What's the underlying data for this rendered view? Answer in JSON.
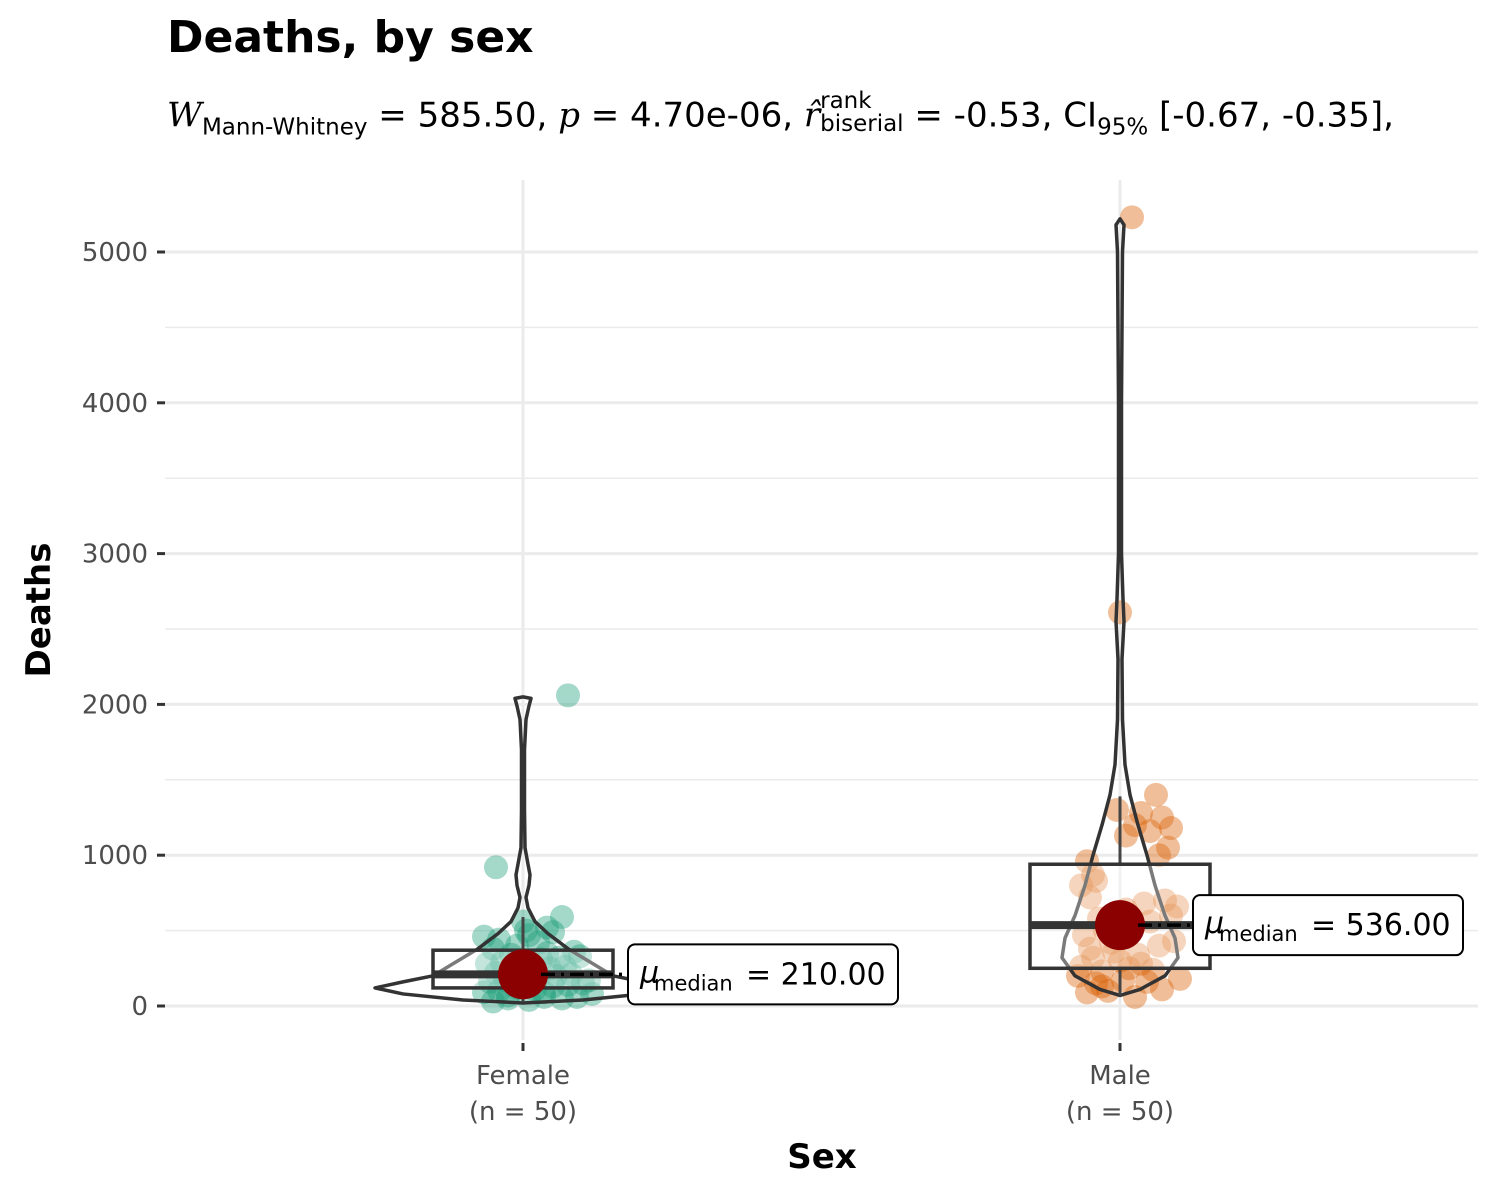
{
  "title": "Deaths, by sex",
  "subtitle": {
    "w_symbol": "W",
    "w_subscript": "Mann-Whitney",
    "w_value": "= 585.50,",
    "p_symbol": "p",
    "p_value": "= 4.70e-06,",
    "r_symbol": "r̂",
    "r_superscript": "rank",
    "r_subscript": "biserial",
    "r_value": "= -0.53,",
    "ci_symbol": "CI",
    "ci_subscript": "95%",
    "ci_value": "[-0.67, -0.35],"
  },
  "colors": {
    "female": "#1B9E77",
    "male": "#D95F02",
    "centrality": "#8B0000",
    "grid": "#ebebeb",
    "violin": "#333333"
  },
  "chart_data": {
    "type": "violin-box-scatter",
    "xlabel": "Sex",
    "ylabel": "Deaths",
    "ylim": [
      -220,
      5500
    ],
    "yticks": [
      0,
      1000,
      2000,
      3000,
      4000,
      5000
    ],
    "ytick_labels": [
      "0",
      "1000",
      "2000",
      "3000",
      "4000",
      "5000"
    ],
    "grid": true,
    "categories": [
      "Female",
      "Male"
    ],
    "category_labels": [
      {
        "name": "Female",
        "n": "(n = 50)"
      },
      {
        "name": "Male",
        "n": "(n = 50)"
      }
    ],
    "groups": [
      {
        "name": "Female",
        "median": 210,
        "median_label": "= 210.00",
        "median_symbol": "μ",
        "median_subscript": "median",
        "box": {
          "q1": 120,
          "median": 210,
          "q3": 370,
          "whisker_low": 30,
          "whisker_high": 590
        },
        "violin_max": 2050,
        "points": [
          {
            "x": -0.1,
            "y": 30
          },
          {
            "x": -0.05,
            "y": 50
          },
          {
            "x": 0.02,
            "y": 40
          },
          {
            "x": 0.07,
            "y": 60
          },
          {
            "x": 0.13,
            "y": 50
          },
          {
            "x": 0.18,
            "y": 60
          },
          {
            "x": 0.23,
            "y": 80
          },
          {
            "x": -0.13,
            "y": 90
          },
          {
            "x": -0.08,
            "y": 100
          },
          {
            "x": -0.02,
            "y": 120
          },
          {
            "x": 0.04,
            "y": 110
          },
          {
            "x": 0.1,
            "y": 130
          },
          {
            "x": 0.15,
            "y": 140
          },
          {
            "x": 0.2,
            "y": 150
          },
          {
            "x": -0.11,
            "y": 160
          },
          {
            "x": -0.06,
            "y": 170
          },
          {
            "x": -0.01,
            "y": 180
          },
          {
            "x": 0.05,
            "y": 190
          },
          {
            "x": 0.11,
            "y": 200
          },
          {
            "x": 0.16,
            "y": 210
          },
          {
            "x": -0.09,
            "y": 220
          },
          {
            "x": -0.03,
            "y": 230
          },
          {
            "x": 0.03,
            "y": 240
          },
          {
            "x": 0.09,
            "y": 250
          },
          {
            "x": 0.14,
            "y": 260
          },
          {
            "x": -0.12,
            "y": 280
          },
          {
            "x": -0.07,
            "y": 290
          },
          {
            "x": 0.0,
            "y": 300
          },
          {
            "x": 0.06,
            "y": 310
          },
          {
            "x": 0.12,
            "y": 320
          },
          {
            "x": 0.19,
            "y": 330
          },
          {
            "x": -0.04,
            "y": 340
          },
          {
            "x": 0.08,
            "y": 350
          },
          {
            "x": 0.17,
            "y": 360
          },
          {
            "x": -0.1,
            "y": 380
          },
          {
            "x": -0.02,
            "y": 400
          },
          {
            "x": 0.05,
            "y": 420
          },
          {
            "x": -0.08,
            "y": 440
          },
          {
            "x": -0.13,
            "y": 460
          },
          {
            "x": 0.02,
            "y": 470
          },
          {
            "x": 0.1,
            "y": 490
          },
          {
            "x": 0.01,
            "y": 500
          },
          {
            "x": 0.08,
            "y": 520
          },
          {
            "x": 0.0,
            "y": 560
          },
          {
            "x": 0.13,
            "y": 590
          },
          {
            "x": -0.09,
            "y": 920
          },
          {
            "x": 0.15,
            "y": 2060
          },
          {
            "x": -0.05,
            "y": 70
          },
          {
            "x": 0.07,
            "y": 90
          },
          {
            "x": 0.22,
            "y": 170
          }
        ]
      },
      {
        "name": "Male",
        "median": 536,
        "median_label": "= 536.00",
        "median_symbol": "μ",
        "median_subscript": "median",
        "box": {
          "q1": 250,
          "median": 536,
          "q3": 940,
          "whisker_low": 70,
          "whisker_high": 1390
        },
        "violin_max": 5220,
        "points": [
          {
            "x": -0.11,
            "y": 90
          },
          {
            "x": -0.04,
            "y": 100
          },
          {
            "x": 0.05,
            "y": 60
          },
          {
            "x": 0.14,
            "y": 110
          },
          {
            "x": 0.2,
            "y": 180
          },
          {
            "x": -0.14,
            "y": 200
          },
          {
            "x": -0.08,
            "y": 150
          },
          {
            "x": 0.01,
            "y": 170
          },
          {
            "x": 0.09,
            "y": 160
          },
          {
            "x": -0.13,
            "y": 260
          },
          {
            "x": -0.06,
            "y": 230
          },
          {
            "x": 0.03,
            "y": 250
          },
          {
            "x": 0.11,
            "y": 240
          },
          {
            "x": -0.09,
            "y": 320
          },
          {
            "x": 0.0,
            "y": 300
          },
          {
            "x": 0.07,
            "y": 280
          },
          {
            "x": -0.1,
            "y": 380
          },
          {
            "x": -0.02,
            "y": 360
          },
          {
            "x": 0.13,
            "y": 400
          },
          {
            "x": 0.18,
            "y": 430
          },
          {
            "x": -0.12,
            "y": 470
          },
          {
            "x": -0.05,
            "y": 500
          },
          {
            "x": 0.04,
            "y": 520
          },
          {
            "x": 0.1,
            "y": 560
          },
          {
            "x": 0.17,
            "y": 600
          },
          {
            "x": -0.07,
            "y": 580
          },
          {
            "x": 0.02,
            "y": 640
          },
          {
            "x": 0.08,
            "y": 680
          },
          {
            "x": 0.15,
            "y": 700
          },
          {
            "x": -0.1,
            "y": 720
          },
          {
            "x": -0.13,
            "y": 800
          },
          {
            "x": -0.09,
            "y": 870
          },
          {
            "x": -0.11,
            "y": 960
          },
          {
            "x": 0.13,
            "y": 1000
          },
          {
            "x": 0.16,
            "y": 1050
          },
          {
            "x": 0.02,
            "y": 1130
          },
          {
            "x": 0.1,
            "y": 1160
          },
          {
            "x": 0.05,
            "y": 1200
          },
          {
            "x": 0.14,
            "y": 1250
          },
          {
            "x": -0.01,
            "y": 1300
          },
          {
            "x": 0.17,
            "y": 1180
          },
          {
            "x": 0.07,
            "y": 1280
          },
          {
            "x": 0.12,
            "y": 1400
          },
          {
            "x": 0.0,
            "y": 2610
          },
          {
            "x": 0.04,
            "y": 5230
          },
          {
            "x": -0.08,
            "y": 830
          },
          {
            "x": 0.19,
            "y": 660
          },
          {
            "x": -0.03,
            "y": 420
          },
          {
            "x": 0.06,
            "y": 340
          },
          {
            "x": -0.06,
            "y": 130
          }
        ]
      }
    ]
  }
}
